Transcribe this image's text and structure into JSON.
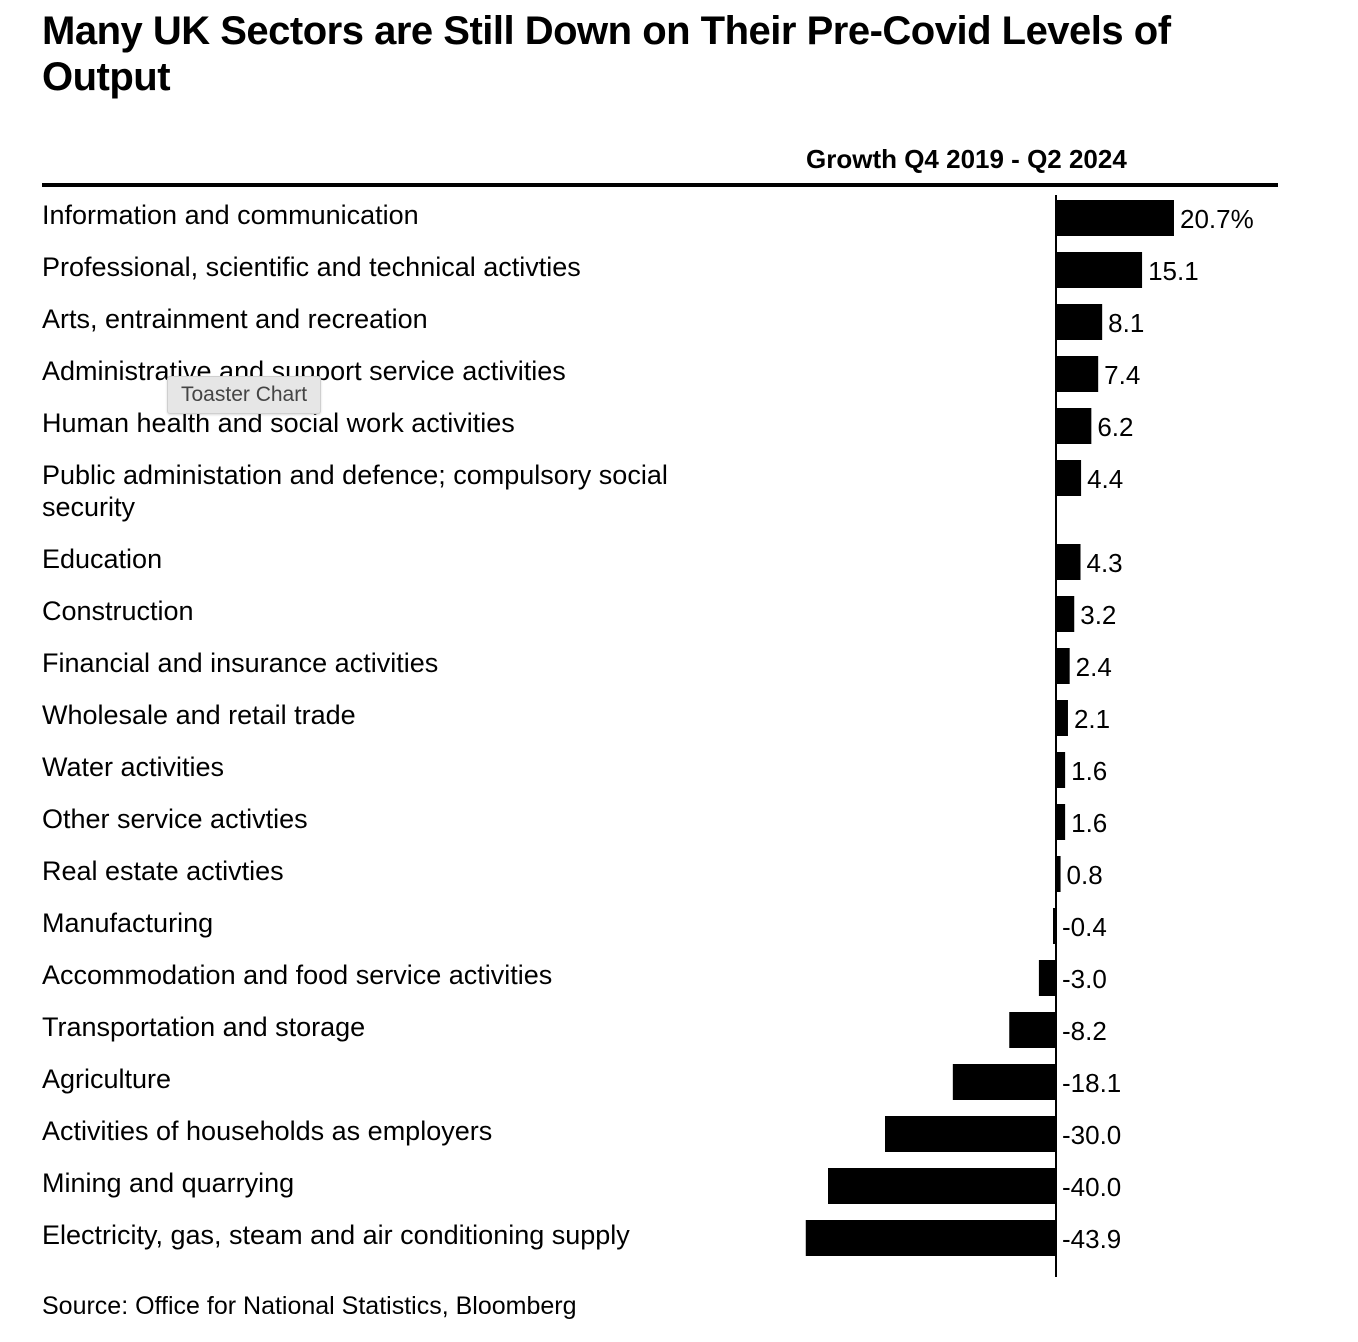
{
  "chart_data": {
    "type": "bar",
    "orientation": "horizontal",
    "title": "Many UK Sectors are Still Down on Their Pre-Covid Levels of Output",
    "column_header": "Growth Q4 2019 - Q2 2024",
    "unit_suffix": "%",
    "categories": [
      "Information and communication",
      "Professional, scientific and technical activties",
      "Arts, entrainment and recreation",
      "Administrative and support service activities",
      "Human health and social work activities",
      "Public administation and defence; compulsory social security",
      "Education",
      "Construction",
      "Financial and insurance activities",
      "Wholesale and retail trade",
      "Water activities",
      "Other service activties",
      "Real estate activties",
      "Manufacturing",
      "Accommodation and food service activities",
      "Transportation and storage",
      "Agriculture",
      "Activities of households as employers",
      "Mining and quarrying",
      "Electricity, gas, steam and air conditioning supply"
    ],
    "values": [
      20.7,
      15.1,
      8.1,
      7.4,
      6.2,
      4.4,
      4.3,
      3.2,
      2.4,
      2.1,
      1.6,
      1.6,
      0.8,
      -0.4,
      -3.0,
      -8.2,
      -18.1,
      -30.0,
      -40.0,
      -43.9
    ],
    "value_labels": [
      "20.7%",
      "15.1",
      "8.1",
      "7.4",
      "6.2",
      "4.4",
      "4.3",
      "3.2",
      "2.4",
      "2.1",
      "1.6",
      "1.6",
      "0.8",
      "-0.4",
      "-3.0",
      "-8.2",
      "-18.1",
      "-30.0",
      "-40.0",
      "-43.9"
    ],
    "bar_color": "#000000",
    "grid": false,
    "source": "Source: Office for National Statistics, Bloomberg"
  },
  "tooltip": {
    "text": "Toaster Chart"
  }
}
